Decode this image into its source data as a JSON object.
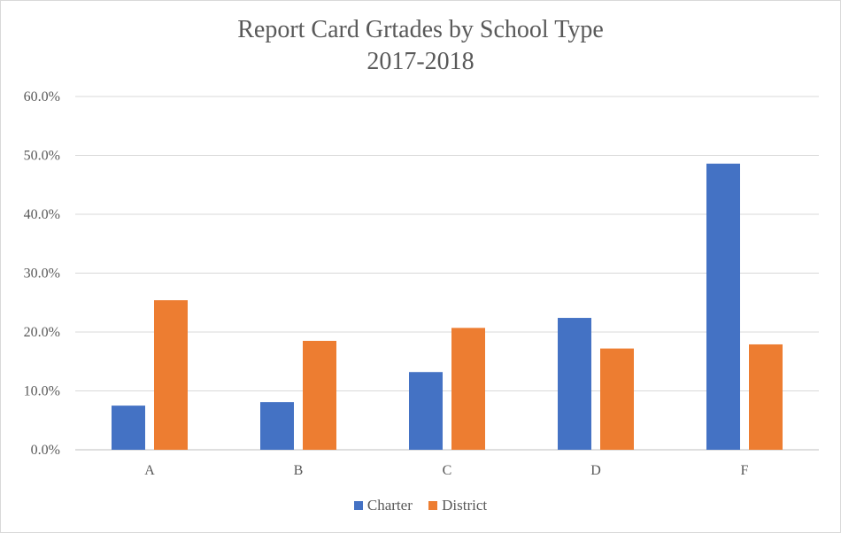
{
  "chart_data": {
    "type": "bar",
    "title": "Report Card Grtades by School Type",
    "subtitle": "2017-2018",
    "categories": [
      "A",
      "B",
      "C",
      "D",
      "F"
    ],
    "series": [
      {
        "name": "Charter",
        "color": "#4472c4",
        "values": [
          7.5,
          8.1,
          13.2,
          22.4,
          48.6
        ]
      },
      {
        "name": "District",
        "color": "#ed7d31",
        "values": [
          25.4,
          18.5,
          20.7,
          17.2,
          17.9
        ]
      }
    ],
    "ylim": [
      0,
      60
    ],
    "yticks": [
      "0.0%",
      "10.0%",
      "20.0%",
      "30.0%",
      "40.0%",
      "50.0%",
      "60.0%"
    ],
    "grid": true,
    "legend_position": "bottom"
  }
}
